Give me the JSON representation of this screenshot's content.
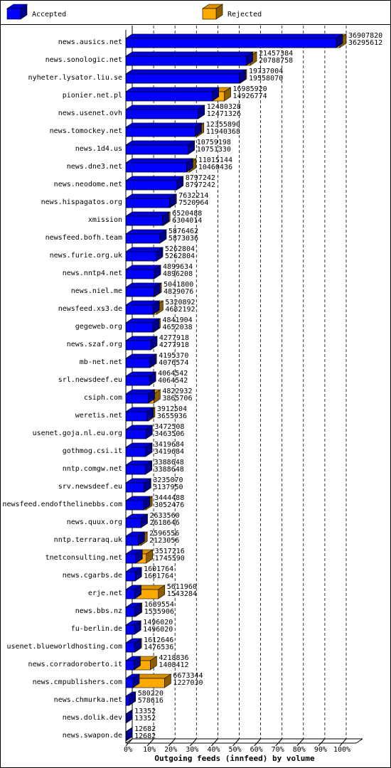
{
  "chart_data": {
    "type": "bar3d",
    "orientation": "horizontal",
    "x_label": "Outgoing feeds (innfeed) by volume",
    "legend": "top",
    "grid": true,
    "categories": [
      "news.ausics.net",
      "news.sonologic.net",
      "nyheter.lysator.liu.se",
      "pionier.net.pl",
      "news.usenet.ovh",
      "news.tomockey.net",
      "news.1d4.us",
      "news.dne3.net",
      "news.neodome.net",
      "news.hispagatos.org",
      "xmission",
      "newsfeed.bofh.team",
      "news.furie.org.uk",
      "news.nntp4.net",
      "news.niel.me",
      "newsfeed.xs3.de",
      "gegeweb.org",
      "news.szaf.org",
      "mb-net.net",
      "srl.newsdeef.eu",
      "csiph.com",
      "weretis.net",
      "usenet.goja.nl.eu.org",
      "gothmog.csi.it",
      "nntp.comgw.net",
      "srv.newsdeef.eu",
      "newsfeed.endofthelinebbs.com",
      "news.quux.org",
      "nntp.terraraq.uk",
      "tnetconsulting.net",
      "news.cgarbs.de",
      "erje.net",
      "news.bbs.nz",
      "fu-berlin.de",
      "usenet.blueworldhosting.com",
      "news.corradoroberto.it",
      "news.cmpublishers.com",
      "news.chmurka.net",
      "news.dolik.dev",
      "news.swapon.de"
    ],
    "series": [
      {
        "name": "Rejected",
        "color": "#ffaa00",
        "values": [
          36907820,
          21457384,
          19737004,
          16985920,
          12480328,
          12355890,
          10759198,
          11015144,
          8797242,
          7632214,
          6520488,
          5876462,
          5262804,
          4899634,
          5041800,
          5320892,
          4841904,
          4277918,
          4195370,
          4064542,
          4822932,
          3912504,
          3472508,
          3419684,
          3388648,
          3235070,
          3444488,
          2633560,
          2596556,
          3517216,
          1601764,
          5611960,
          1689554,
          1496020,
          1612646,
          4218836,
          6673344,
          580220,
          13352,
          12682
        ]
      },
      {
        "name": "Accepted",
        "color": "#0000ff",
        "values": [
          36295612,
          20788758,
          19558070,
          14926774,
          12471326,
          11940368,
          10751330,
          10460436,
          8797242,
          7520964,
          6304014,
          5873036,
          5262804,
          4896208,
          4829076,
          4682192,
          4652038,
          4277918,
          4076574,
          4064542,
          3865706,
          3655936,
          3463506,
          3419684,
          3388648,
          3137950,
          3052476,
          2618646,
          2123056,
          1745590,
          1601764,
          1543284,
          1535906,
          1496020,
          1476536,
          1408412,
          1227030,
          578616,
          13352,
          12682
        ]
      }
    ],
    "xlim": [
      0,
      36907820
    ],
    "xticks": [
      {
        "value": 0,
        "label": "0%"
      },
      {
        "value": 3690782,
        "label": "10%"
      },
      {
        "value": 7381564,
        "label": "20%"
      },
      {
        "value": 11072346,
        "label": "30%"
      },
      {
        "value": 14763128,
        "label": "40%"
      },
      {
        "value": 18453910,
        "label": "50%"
      },
      {
        "value": 22144692,
        "label": "60%"
      },
      {
        "value": 25835474,
        "label": "70%"
      },
      {
        "value": 29526256,
        "label": "80%"
      },
      {
        "value": 33217038,
        "label": "90%"
      },
      {
        "value": 36907820,
        "label": "100%"
      }
    ]
  }
}
